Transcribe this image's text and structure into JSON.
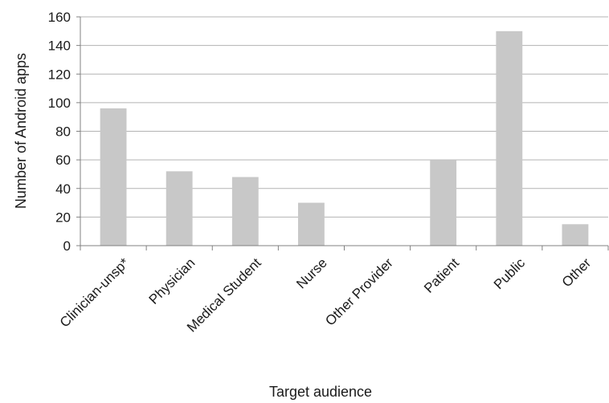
{
  "chart_data": {
    "type": "bar",
    "title": "",
    "xlabel": "Target audience",
    "ylabel": "Number of Android apps",
    "categories": [
      "Clinician-unsp*",
      "Physician",
      "Medical Student",
      "Nurse",
      "Other Provider",
      "Patient",
      "Public",
      "Other"
    ],
    "values": [
      96,
      52,
      48,
      30,
      0,
      60,
      150,
      15
    ],
    "ylim": [
      0,
      160
    ],
    "yticks": [
      0,
      20,
      40,
      60,
      80,
      100,
      120,
      140,
      160
    ],
    "grid": true,
    "legend": "none",
    "bar_color": "#c8c8c8"
  }
}
